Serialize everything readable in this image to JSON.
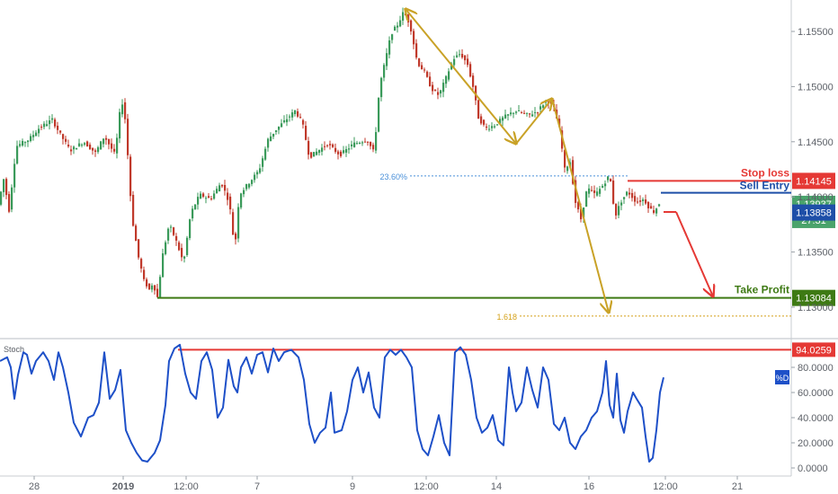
{
  "chart_data": [
    {
      "type": "candlestick",
      "title": "",
      "ylim": [
        1.1272,
        1.158
      ],
      "y_ticks": [
        1.13,
        1.135,
        1.14,
        1.145,
        1.15,
        1.155
      ],
      "y_tick_labels": [
        "1.13000",
        "1.13500",
        "1.14000",
        "1.14500",
        "1.15000",
        "1.15500"
      ],
      "x_ticks": [
        "28",
        "2019",
        "12:00",
        "7",
        "9",
        "12:00",
        "14",
        "16",
        "12:00",
        "21"
      ],
      "price_path": [
        [
          0,
          1.1393
        ],
        [
          6,
          1.1416
        ],
        [
          12,
          1.1388
        ],
        [
          20,
          1.1446
        ],
        [
          34,
          1.1452
        ],
        [
          45,
          1.1462
        ],
        [
          60,
          1.147
        ],
        [
          68,
          1.1458
        ],
        [
          80,
          1.1442
        ],
        [
          95,
          1.145
        ],
        [
          108,
          1.144
        ],
        [
          118,
          1.1455
        ],
        [
          130,
          1.1438
        ],
        [
          137,
          1.149
        ],
        [
          142,
          1.1466
        ],
        [
          146,
          1.141
        ],
        [
          150,
          1.1375
        ],
        [
          156,
          1.1345
        ],
        [
          162,
          1.1324
        ],
        [
          168,
          1.1316
        ],
        [
          172,
          1.1322
        ],
        [
          177,
          1.1309
        ],
        [
          183,
          1.1348
        ],
        [
          190,
          1.1375
        ],
        [
          197,
          1.1362
        ],
        [
          206,
          1.134
        ],
        [
          214,
          1.1385
        ],
        [
          224,
          1.1402
        ],
        [
          236,
          1.1398
        ],
        [
          248,
          1.1413
        ],
        [
          257,
          1.1395
        ],
        [
          263,
          1.1352
        ],
        [
          268,
          1.1402
        ],
        [
          278,
          1.1412
        ],
        [
          290,
          1.1424
        ],
        [
          300,
          1.1452
        ],
        [
          310,
          1.1462
        ],
        [
          320,
          1.147
        ],
        [
          330,
          1.1478
        ],
        [
          338,
          1.1468
        ],
        [
          346,
          1.1436
        ],
        [
          356,
          1.1442
        ],
        [
          366,
          1.1448
        ],
        [
          380,
          1.1438
        ],
        [
          395,
          1.1448
        ],
        [
          410,
          1.1452
        ],
        [
          418,
          1.144
        ],
        [
          424,
          1.15
        ],
        [
          430,
          1.1522
        ],
        [
          437,
          1.1548
        ],
        [
          444,
          1.1556
        ],
        [
          451,
          1.1568
        ],
        [
          458,
          1.1556
        ],
        [
          466,
          1.1522
        ],
        [
          474,
          1.1513
        ],
        [
          482,
          1.1498
        ],
        [
          490,
          1.1492
        ],
        [
          498,
          1.1508
        ],
        [
          506,
          1.1525
        ],
        [
          514,
          1.153
        ],
        [
          522,
          1.152
        ],
        [
          528,
          1.15
        ],
        [
          534,
          1.1472
        ],
        [
          542,
          1.1462
        ],
        [
          552,
          1.1465
        ],
        [
          562,
          1.1472
        ],
        [
          575,
          1.1478
        ],
        [
          590,
          1.1474
        ],
        [
          600,
          1.1478
        ],
        [
          610,
          1.1488
        ],
        [
          618,
          1.148
        ],
        [
          624,
          1.1462
        ],
        [
          630,
          1.1425
        ],
        [
          636,
          1.1432
        ],
        [
          642,
          1.1395
        ],
        [
          648,
          1.138
        ],
        [
          655,
          1.1408
        ],
        [
          664,
          1.1402
        ],
        [
          672,
          1.141
        ],
        [
          680,
          1.142
        ],
        [
          686,
          1.1382
        ],
        [
          692,
          1.1395
        ],
        [
          700,
          1.1405
        ],
        [
          710,
          1.1395
        ],
        [
          718,
          1.1398
        ],
        [
          724,
          1.139
        ],
        [
          730,
          1.1386
        ],
        [
          734,
          1.1394
        ]
      ],
      "annotations": {
        "stop_loss": {
          "label": "Stop loss",
          "value": 1.14145,
          "tag": "1.14145",
          "color": "#e53935"
        },
        "sell_entry": {
          "label": "Sell Entry",
          "value": 1.13858,
          "tag": "1.13858",
          "color": "#1e4fa8"
        },
        "take_profit": {
          "label": "Take Profit",
          "value": 1.13084,
          "tag": "1.13084",
          "color": "#3e7a14"
        },
        "fib_2360": {
          "label": "23.60%",
          "value": 1.1419,
          "color": "#4a90d9"
        },
        "fib_1618": {
          "label": "1.618",
          "value": 1.1292,
          "color": "#d4a017"
        },
        "last_price": {
          "tag": "1.13937",
          "value": 1.13937,
          "color": "#4aa36b"
        },
        "countdown": {
          "tag": "27:31",
          "color": "#4aa36b"
        }
      },
      "arrows_color": "#c9a227",
      "projection_color": "#e53935"
    },
    {
      "type": "line",
      "title": "Stoch",
      "ylim": [
        0,
        100
      ],
      "y_ticks": [
        0,
        20,
        40,
        60,
        80
      ],
      "y_tick_labels": [
        "0.0000",
        "20.0000",
        "40.0000",
        "60.0000",
        "80.0000"
      ],
      "series": [
        {
          "name": "%D",
          "color": "#1e50c8",
          "points": [
            [
              0,
              85
            ],
            [
              8,
              88
            ],
            [
              12,
              80
            ],
            [
              16,
              55
            ],
            [
              20,
              74
            ],
            [
              26,
              92
            ],
            [
              30,
              90
            ],
            [
              35,
              75
            ],
            [
              40,
              85
            ],
            [
              48,
              92
            ],
            [
              54,
              85
            ],
            [
              60,
              70
            ],
            [
              65,
              92
            ],
            [
              70,
              80
            ],
            [
              76,
              60
            ],
            [
              82,
              36
            ],
            [
              90,
              25
            ],
            [
              98,
              40
            ],
            [
              104,
              42
            ],
            [
              110,
              52
            ],
            [
              116,
              92
            ],
            [
              122,
              55
            ],
            [
              128,
              62
            ],
            [
              134,
              78
            ],
            [
              140,
              30
            ],
            [
              146,
              20
            ],
            [
              152,
              12
            ],
            [
              158,
              6
            ],
            [
              164,
              5
            ],
            [
              172,
              12
            ],
            [
              178,
              22
            ],
            [
              184,
              50
            ],
            [
              188,
              85
            ],
            [
              194,
              95
            ],
            [
              200,
              98
            ],
            [
              206,
              75
            ],
            [
              212,
              60
            ],
            [
              218,
              55
            ],
            [
              224,
              85
            ],
            [
              230,
              92
            ],
            [
              236,
              78
            ],
            [
              242,
              40
            ],
            [
              248,
              48
            ],
            [
              254,
              86
            ],
            [
              260,
              65
            ],
            [
              264,
              60
            ],
            [
              268,
              80
            ],
            [
              274,
              88
            ],
            [
              280,
              75
            ],
            [
              286,
              90
            ],
            [
              292,
              92
            ],
            [
              298,
              76
            ],
            [
              304,
              95
            ],
            [
              310,
              85
            ],
            [
              316,
              92
            ],
            [
              324,
              94
            ],
            [
              332,
              88
            ],
            [
              338,
              70
            ],
            [
              344,
              35
            ],
            [
              350,
              20
            ],
            [
              356,
              28
            ],
            [
              362,
              32
            ],
            [
              368,
              60
            ],
            [
              372,
              28
            ],
            [
              380,
              30
            ],
            [
              386,
              45
            ],
            [
              392,
              70
            ],
            [
              398,
              80
            ],
            [
              404,
              60
            ],
            [
              410,
              76
            ],
            [
              416,
              48
            ],
            [
              422,
              40
            ],
            [
              428,
              88
            ],
            [
              434,
              94
            ],
            [
              440,
              90
            ],
            [
              446,
              94
            ],
            [
              452,
              88
            ],
            [
              458,
              80
            ],
            [
              464,
              30
            ],
            [
              470,
              15
            ],
            [
              476,
              10
            ],
            [
              482,
              25
            ],
            [
              488,
              42
            ],
            [
              494,
              20
            ],
            [
              500,
              10
            ],
            [
              506,
              92
            ],
            [
              512,
              96
            ],
            [
              518,
              90
            ],
            [
              524,
              70
            ],
            [
              530,
              40
            ],
            [
              536,
              28
            ],
            [
              542,
              32
            ],
            [
              548,
              42
            ],
            [
              554,
              22
            ],
            [
              560,
              18
            ],
            [
              566,
              80
            ],
            [
              570,
              60
            ],
            [
              574,
              45
            ],
            [
              580,
              52
            ],
            [
              586,
              80
            ],
            [
              592,
              62
            ],
            [
              598,
              48
            ],
            [
              604,
              80
            ],
            [
              610,
              70
            ],
            [
              616,
              35
            ],
            [
              622,
              30
            ],
            [
              628,
              40
            ],
            [
              634,
              20
            ],
            [
              640,
              15
            ],
            [
              646,
              25
            ],
            [
              652,
              30
            ],
            [
              658,
              40
            ],
            [
              664,
              45
            ],
            [
              670,
              60
            ],
            [
              674,
              85
            ],
            [
              678,
              50
            ],
            [
              682,
              40
            ],
            [
              686,
              75
            ],
            [
              690,
              38
            ],
            [
              694,
              28
            ],
            [
              698,
              45
            ],
            [
              704,
              60
            ],
            [
              708,
              55
            ],
            [
              714,
              48
            ],
            [
              718,
              25
            ],
            [
              722,
              5
            ],
            [
              726,
              8
            ],
            [
              730,
              30
            ],
            [
              734,
              60
            ],
            [
              738,
              72
            ]
          ]
        }
      ],
      "annotations": {
        "overbought": {
          "value": 94.0259,
          "tag": "94.0259",
          "color": "#e53935"
        },
        "series_tag": {
          "label": "%D",
          "color": "#1e50c8"
        }
      }
    }
  ]
}
